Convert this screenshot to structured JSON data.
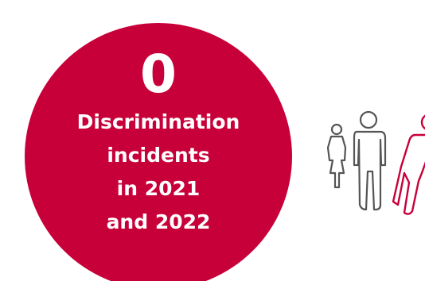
{
  "colors": {
    "accent": "#c8003a",
    "icon_outline": "#555555",
    "background": "#ffffff"
  },
  "stat": {
    "value": "0",
    "caption_lines": [
      "Discrimination",
      "incidents",
      "in 2021",
      "and 2022"
    ]
  },
  "icons": {
    "people": [
      "woman-outline-icon",
      "man-outline-icon",
      "person-accent-outline-icon"
    ]
  }
}
